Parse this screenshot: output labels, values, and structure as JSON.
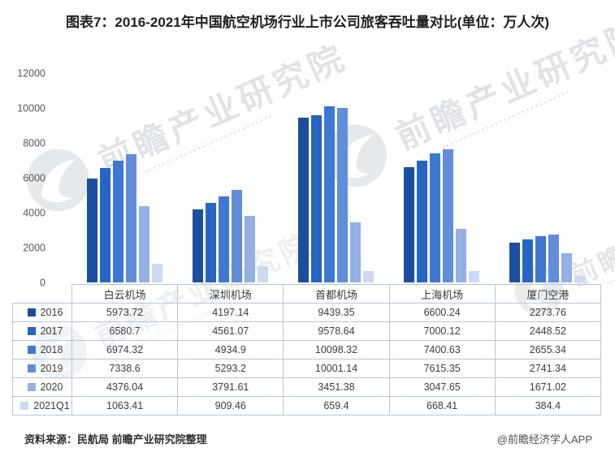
{
  "header": {
    "title": "图表7：2016-2021年中国航空机场行业上市公司旅客吞吐量对比(单位：万人次)"
  },
  "watermark": {
    "text": "前瞻产业研究院",
    "logo": "qianzhan-globe-logo"
  },
  "chart_data": {
    "type": "bar",
    "title": "图表7：2016-2021年中国航空机场行业上市公司旅客吞吐量对比(单位：万人次)",
    "categories": [
      "白云机场",
      "深圳机场",
      "首都机场",
      "上海机场",
      "厦门空港"
    ],
    "series": [
      {
        "name": "2016",
        "color": "#1a4fa0",
        "values": [
          5973.72,
          4197.14,
          9439.35,
          6600.24,
          2273.76
        ]
      },
      {
        "name": "2017",
        "color": "#2765c5",
        "values": [
          6580.7,
          4561.07,
          9578.64,
          7000.12,
          2448.52
        ]
      },
      {
        "name": "2018",
        "color": "#3e78d2",
        "values": [
          6974.32,
          4934.9,
          10098.32,
          7400.63,
          2655.34
        ]
      },
      {
        "name": "2019",
        "color": "#618dda",
        "values": [
          7338.6,
          5293.2,
          10001.14,
          7615.35,
          2741.34
        ]
      },
      {
        "name": "2020",
        "color": "#93b1e5",
        "values": [
          4376.04,
          3791.61,
          3451.38,
          3047.65,
          1671.02
        ]
      },
      {
        "name": "2021Q1",
        "color": "#cbdaf2",
        "values": [
          1063.41,
          909.46,
          659.4,
          668.41,
          384.4
        ]
      }
    ],
    "xlabel": "",
    "ylabel": "",
    "ylim": [
      0,
      12000
    ],
    "yticks": [
      0,
      2000,
      4000,
      6000,
      8000,
      10000,
      12000
    ],
    "grid": false,
    "legend_position": "table-left-column"
  },
  "footer": {
    "source_note": "资料来源：民航局 前瞻产业研究院整理",
    "credit": "@前瞻经济学人APP"
  }
}
